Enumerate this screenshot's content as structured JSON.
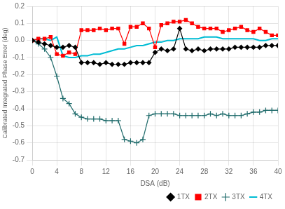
{
  "chart_data": {
    "type": "line",
    "xlabel": "DSA (dB)",
    "ylabel": "Calibrated Integrated Phase Error (deg)",
    "x": [
      0,
      1,
      2,
      3,
      4,
      5,
      6,
      7,
      8,
      9,
      10,
      11,
      12,
      13,
      14,
      15,
      16,
      17,
      18,
      19,
      20,
      21,
      22,
      23,
      24,
      25,
      26,
      27,
      28,
      29,
      30,
      31,
      32,
      33,
      34,
      35,
      36,
      37,
      38,
      39,
      40
    ],
    "xlim": [
      0,
      40
    ],
    "xticks": [
      0,
      4,
      8,
      12,
      16,
      20,
      24,
      28,
      32,
      36,
      40
    ],
    "ylim": [
      -0.7,
      0.2
    ],
    "yticks": [
      -0.7,
      -0.6,
      -0.5,
      -0.4,
      -0.3,
      -0.2,
      -0.1,
      {
        "value": 0,
        "label": "0.0"
      },
      0.1,
      0.2
    ],
    "grid": true,
    "legend": "lower right",
    "series": [
      {
        "name": "1TX",
        "color": "#000000",
        "marker": "diamond",
        "values": [
          0.0,
          -0.01,
          -0.02,
          -0.03,
          -0.04,
          -0.04,
          -0.03,
          -0.04,
          -0.13,
          -0.13,
          -0.13,
          -0.14,
          -0.13,
          -0.14,
          -0.14,
          -0.14,
          -0.13,
          -0.13,
          -0.13,
          -0.13,
          -0.07,
          -0.05,
          -0.06,
          -0.05,
          0.07,
          -0.05,
          -0.06,
          -0.05,
          -0.06,
          -0.05,
          -0.05,
          -0.05,
          -0.05,
          -0.04,
          -0.04,
          -0.04,
          -0.04,
          -0.04,
          -0.03,
          -0.03,
          -0.03
        ]
      },
      {
        "name": "2TX",
        "color": "#ff0000",
        "marker": "square",
        "values": [
          0.0,
          0.01,
          0.01,
          0.02,
          -0.08,
          -0.09,
          -0.07,
          -0.08,
          0.06,
          0.06,
          0.06,
          0.07,
          0.06,
          0.07,
          0.07,
          -0.02,
          0.08,
          0.08,
          0.1,
          0.07,
          -0.04,
          0.09,
          0.1,
          0.11,
          0.11,
          0.12,
          0.1,
          0.08,
          0.07,
          0.07,
          0.07,
          0.05,
          0.06,
          0.07,
          0.08,
          0.06,
          0.05,
          0.07,
          0.05,
          0.03,
          0.03
        ]
      },
      {
        "name": "3TX",
        "color": "#1f6b6b",
        "marker": "plus",
        "values": [
          0.0,
          -0.02,
          -0.05,
          -0.1,
          -0.21,
          -0.34,
          -0.37,
          -0.43,
          -0.45,
          -0.46,
          -0.46,
          -0.46,
          -0.47,
          -0.47,
          -0.47,
          -0.58,
          -0.59,
          -0.6,
          -0.58,
          -0.44,
          -0.43,
          -0.43,
          -0.43,
          -0.43,
          -0.44,
          -0.44,
          -0.44,
          -0.44,
          -0.44,
          -0.43,
          -0.44,
          -0.43,
          -0.44,
          -0.44,
          -0.44,
          -0.43,
          -0.42,
          -0.42,
          -0.41,
          -0.41,
          -0.41
        ]
      },
      {
        "name": "4TX",
        "color": "#00bcd4",
        "marker": "none",
        "values": [
          0.0,
          0.01,
          0.01,
          0.0,
          0.02,
          -0.09,
          -0.1,
          -0.1,
          -0.09,
          -0.09,
          -0.08,
          -0.08,
          -0.07,
          -0.06,
          -0.05,
          -0.05,
          -0.04,
          -0.03,
          -0.03,
          -0.02,
          -0.01,
          -0.01,
          0.0,
          0.0,
          0.01,
          0.01,
          0.01,
          0.01,
          0.02,
          0.02,
          0.02,
          0.01,
          0.01,
          0.01,
          0.01,
          0.01,
          0.01,
          0.0,
          0.0,
          0.01,
          0.01
        ]
      }
    ]
  }
}
